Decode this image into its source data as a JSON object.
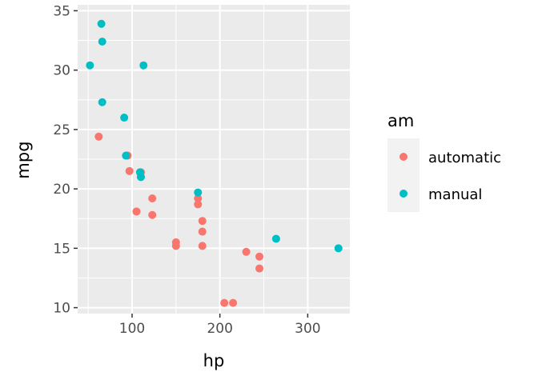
{
  "chart_data": {
    "type": "scatter",
    "title": "",
    "xlabel": "hp",
    "ylabel": "mpg",
    "xlim": [
      38,
      348
    ],
    "ylim": [
      9.5,
      35.5
    ],
    "xticks": [
      100,
      200,
      300
    ],
    "yticks": [
      10,
      15,
      20,
      25,
      30,
      35
    ],
    "grid": true,
    "legend": {
      "title": "am",
      "placement": "right"
    },
    "series": [
      {
        "name": "automatic",
        "color": "#F8766D",
        "points": [
          {
            "x": 110,
            "y": 21.4
          },
          {
            "x": 175,
            "y": 18.7
          },
          {
            "x": 105,
            "y": 18.1
          },
          {
            "x": 245,
            "y": 14.3
          },
          {
            "x": 62,
            "y": 24.4
          },
          {
            "x": 95,
            "y": 22.8
          },
          {
            "x": 123,
            "y": 19.2
          },
          {
            "x": 123,
            "y": 17.8
          },
          {
            "x": 180,
            "y": 16.4
          },
          {
            "x": 180,
            "y": 17.3
          },
          {
            "x": 180,
            "y": 15.2
          },
          {
            "x": 205,
            "y": 10.4
          },
          {
            "x": 215,
            "y": 10.4
          },
          {
            "x": 230,
            "y": 14.7
          },
          {
            "x": 97,
            "y": 21.5
          },
          {
            "x": 150,
            "y": 15.5
          },
          {
            "x": 150,
            "y": 15.2
          },
          {
            "x": 245,
            "y": 13.3
          },
          {
            "x": 175,
            "y": 19.2
          }
        ]
      },
      {
        "name": "manual",
        "color": "#00BFC4",
        "points": [
          {
            "x": 110,
            "y": 21.0
          },
          {
            "x": 110,
            "y": 21.0
          },
          {
            "x": 93,
            "y": 22.8
          },
          {
            "x": 66,
            "y": 32.4
          },
          {
            "x": 52,
            "y": 30.4
          },
          {
            "x": 65,
            "y": 33.9
          },
          {
            "x": 66,
            "y": 27.3
          },
          {
            "x": 91,
            "y": 26.0
          },
          {
            "x": 113,
            "y": 30.4
          },
          {
            "x": 264,
            "y": 15.8
          },
          {
            "x": 175,
            "y": 19.7
          },
          {
            "x": 335,
            "y": 15.0
          },
          {
            "x": 109,
            "y": 21.4
          }
        ]
      }
    ]
  }
}
